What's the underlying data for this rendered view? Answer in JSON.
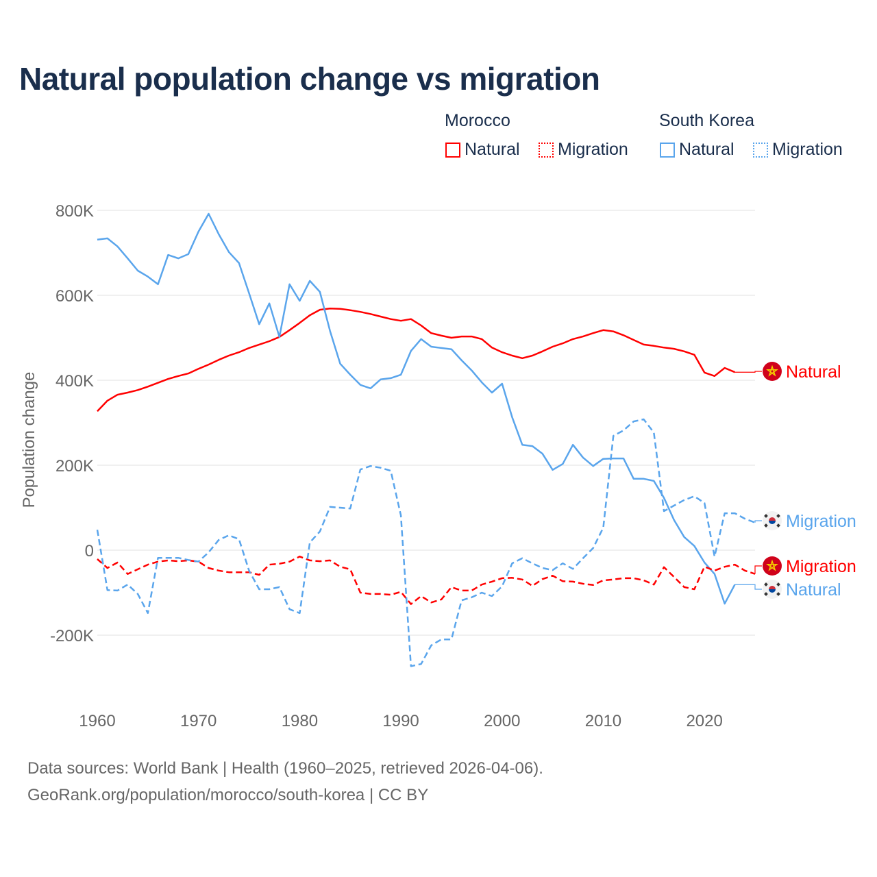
{
  "colors": {
    "morocco": "#ff0000",
    "korea": "#5aa5ec",
    "grid": "#e6e6e6",
    "axis_text": "#666666",
    "title": "#1a2e4c",
    "morocco_flag": "#d0021b",
    "morocco_star": "#f5d000"
  },
  "chart_data": {
    "type": "line",
    "title": "Natural population change vs migration",
    "xlabel": "",
    "ylabel": "Population change",
    "xlim": [
      1960,
      2025
    ],
    "ylim": [
      -300000,
      850000
    ],
    "grid": true,
    "x_ticks": [
      1960,
      1970,
      1980,
      1990,
      2000,
      2010,
      2020
    ],
    "x_tick_labels": [
      "1960",
      "1970",
      "1980",
      "1990",
      "2000",
      "2010",
      "2020"
    ],
    "y_ticks": [
      -200000,
      0,
      200000,
      400000,
      600000,
      800000
    ],
    "y_tick_labels": [
      "-200K",
      "0",
      "200K",
      "400K",
      "600K",
      "800K"
    ],
    "legend": {
      "placement": "top-right",
      "groups": [
        {
          "name": "Morocco",
          "entries": [
            "Natural",
            "Migration"
          ]
        },
        {
          "name": "South Korea",
          "entries": [
            "Natural",
            "Migration"
          ]
        }
      ]
    },
    "series": [
      {
        "name": "Morocco Natural",
        "country": "Morocco",
        "kind": "Natural",
        "color_key": "morocco",
        "dash": false,
        "start_year": 1960,
        "values": [
          327,
          352,
          366,
          371,
          377,
          385,
          394,
          403,
          410,
          416,
          427,
          437,
          448,
          458,
          466,
          476,
          484,
          492,
          502,
          518,
          535,
          553,
          566,
          569,
          568,
          565,
          561,
          556,
          550,
          544,
          540,
          544,
          529,
          511,
          505,
          500,
          503,
          503,
          497,
          477,
          466,
          458,
          452,
          458,
          468,
          479,
          487,
          497,
          503,
          511,
          518,
          515,
          506,
          495,
          484,
          481,
          477,
          474,
          468,
          460,
          418,
          410,
          429,
          419
        ]
      },
      {
        "name": "South Korea Natural",
        "country": "South Korea",
        "kind": "Natural",
        "color_key": "korea",
        "dash": false,
        "start_year": 1960,
        "values": [
          731,
          734,
          715,
          687,
          658,
          644,
          626,
          695,
          687,
          697,
          750,
          792,
          744,
          702,
          676,
          605,
          532,
          581,
          502,
          626,
          587,
          634,
          608,
          516,
          439,
          413,
          389,
          381,
          402,
          405,
          413,
          469,
          497,
          479,
          476,
          473,
          447,
          423,
          395,
          371,
          392,
          313,
          248,
          245,
          227,
          189,
          203,
          248,
          218,
          198,
          215,
          216,
          216,
          168,
          168,
          163,
          123,
          71,
          31,
          10,
          -29,
          -56,
          -126,
          -81
        ]
      },
      {
        "name": "Morocco Migration",
        "country": "Morocco",
        "kind": "Migration",
        "color_key": "morocco",
        "dash": true,
        "start_year": 1960,
        "values": [
          -21,
          -42,
          -29,
          -56,
          -45,
          -34,
          -27,
          -24,
          -26,
          -24,
          -27,
          -42,
          -48,
          -52,
          -52,
          -52,
          -58,
          -34,
          -32,
          -27,
          -15,
          -24,
          -26,
          -24,
          -39,
          -45,
          -100,
          -103,
          -103,
          -105,
          -98,
          -127,
          -108,
          -123,
          -116,
          -87,
          -95,
          -95,
          -81,
          -74,
          -66,
          -65,
          -69,
          -84,
          -68,
          -60,
          -73,
          -74,
          -79,
          -82,
          -71,
          -69,
          -66,
          -66,
          -71,
          -81,
          -40,
          -63,
          -87,
          -92,
          -39,
          -48,
          -39,
          -34,
          -48,
          -56
        ]
      },
      {
        "name": "South Korea Migration",
        "country": "South Korea",
        "kind": "Migration",
        "color_key": "korea",
        "dash": true,
        "start_year": 1960,
        "values": [
          48,
          -94,
          -95,
          -81,
          -103,
          -148,
          -18,
          -18,
          -18,
          -23,
          -27,
          -5,
          24,
          35,
          26,
          -48,
          -92,
          -92,
          -87,
          -139,
          -148,
          18,
          44,
          102,
          100,
          98,
          190,
          198,
          194,
          187,
          82,
          -273,
          -268,
          -224,
          -210,
          -210,
          -118,
          -111,
          -100,
          -108,
          -85,
          -31,
          -19,
          -31,
          -42,
          -47,
          -31,
          -44,
          -19,
          5,
          53,
          269,
          282,
          303,
          308,
          277,
          92,
          105,
          118,
          127,
          111,
          -15,
          87,
          87,
          74,
          65
        ]
      }
    ],
    "values_unit": "thousands",
    "end_labels": [
      {
        "text": "Natural",
        "series": 0,
        "flag": "morocco"
      },
      {
        "text": "Migration",
        "series": 3,
        "flag": "korea"
      },
      {
        "text": "Migration",
        "series": 2,
        "flag": "morocco"
      },
      {
        "text": "Natural",
        "series": 1,
        "flag": "korea"
      }
    ]
  },
  "legend": {
    "morocco": "Morocco",
    "south_korea": "South Korea",
    "natural": "Natural",
    "migration": "Migration"
  },
  "footer": {
    "line1": "Data sources: World Bank | Health (1960–2025, retrieved 2026-04-06).",
    "line2": "GeoRank.org/population/morocco/south-korea | CC BY"
  }
}
